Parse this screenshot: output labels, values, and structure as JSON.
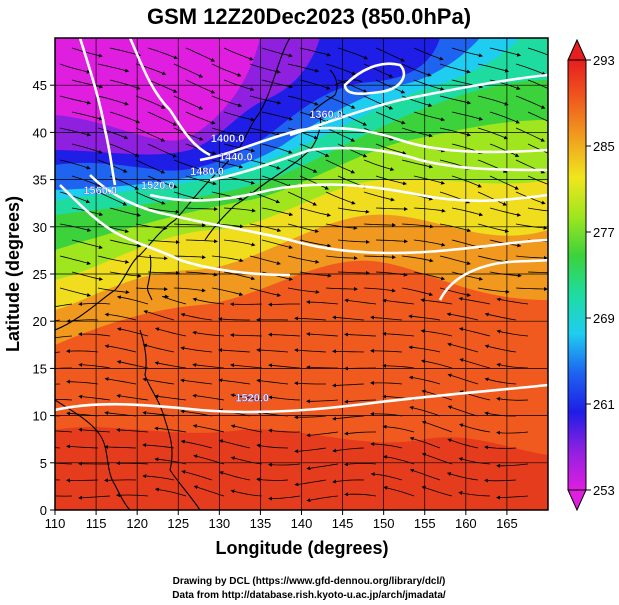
{
  "title": "GSM 12Z20Dec2023 (850.0hPa)",
  "xlabel": "Longitude (degrees)",
  "ylabel": "Latitude  (degrees)",
  "credits": [
    "Drawing by DCL (https://www.gfd-dennou.org/library/dcl/)",
    "Data from http://database.rish.kyoto-u.ac.jp/arch/jmadata/"
  ],
  "map": {
    "xlim": [
      110,
      170
    ],
    "ylim": [
      0,
      50
    ],
    "xticks": [
      110,
      115,
      120,
      125,
      130,
      135,
      140,
      145,
      150,
      155,
      160,
      165
    ],
    "yticks": [
      0,
      5,
      10,
      15,
      20,
      25,
      30,
      35,
      40,
      45
    ],
    "grid": "5-degree lat/lon grid",
    "fields": {
      "shading": "temperature (K)",
      "contours": "geopotential height (m)",
      "streamlines": "wind"
    }
  },
  "colorbar": {
    "min": 253,
    "max": 293,
    "ticks": [
      253,
      261,
      269,
      277,
      285,
      293
    ],
    "colors": [
      "#e01ee0",
      "#9020e0",
      "#1e1ee6",
      "#1e64f0",
      "#1ecdf0",
      "#1edca0",
      "#3cd23c",
      "#a0e61e",
      "#f0e61e",
      "#f0a01e",
      "#f05a1e",
      "#e61e1e"
    ]
  },
  "contour_labels": [
    {
      "text": "1360.0",
      "lon": 143.0,
      "lat": 41.5
    },
    {
      "text": "1400.0",
      "lon": 131.0,
      "lat": 39.0
    },
    {
      "text": "1440.0",
      "lon": 132.0,
      "lat": 37.0
    },
    {
      "text": "1480.0",
      "lon": 128.5,
      "lat": 35.5
    },
    {
      "text": "1520.0",
      "lon": 122.5,
      "lat": 34.0
    },
    {
      "text": "1560.0",
      "lon": 115.5,
      "lat": 33.5
    },
    {
      "text": "1520.0",
      "lon": 134.0,
      "lat": 11.5
    }
  ]
}
